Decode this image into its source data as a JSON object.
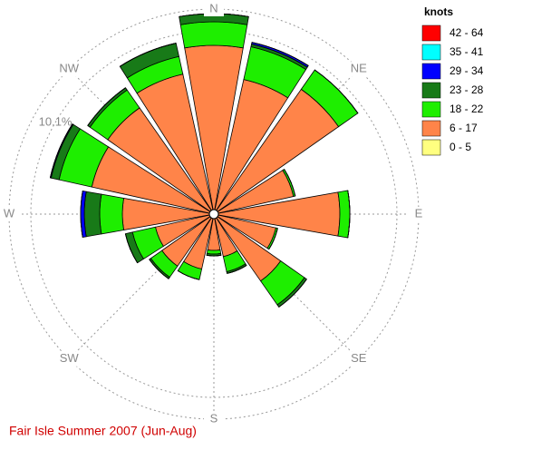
{
  "chart_data": {
    "type": "wind_rose",
    "title": "Fair Isle Summer 2007 (Jun-Aug)",
    "legend_title": "knots",
    "categories": [
      "N",
      null,
      "NE",
      null,
      "E",
      null,
      "SE",
      null,
      "S",
      null,
      "SW",
      null,
      "W",
      null,
      "NW",
      null
    ],
    "rlim": [
      0,
      11.3
    ],
    "rticks": [
      {
        "value": 10.1,
        "label": "10.1%"
      }
    ],
    "series": [
      {
        "name": "0 - 5",
        "color": "#ffff80",
        "values": [
          0,
          0,
          0,
          0,
          0,
          0,
          0,
          0,
          0,
          0,
          0,
          0,
          0,
          0,
          0,
          0
        ]
      },
      {
        "name": "6 - 17",
        "color": "#ff8449",
        "values": [
          9.3,
          7.6,
          8.4,
          4.5,
          6.95,
          3.5,
          4.5,
          2.4,
          2.0,
          3.1,
          3.5,
          3.3,
          5.05,
          6.9,
          7.15,
          7.9
        ]
      },
      {
        "name": "18 - 22",
        "color": "#1eee00",
        "values": [
          1.3,
          1.85,
          1.3,
          0.1,
          0.55,
          0.1,
          1.6,
          0.85,
          0.2,
          0.6,
          0.75,
          1.3,
          1.25,
          1.85,
          1.2,
          1.0
        ]
      },
      {
        "name": "23 - 28",
        "color": "#187a18",
        "values": [
          0.45,
          0.15,
          0,
          0,
          0,
          0,
          0.15,
          0.1,
          0.1,
          0,
          0.1,
          0.4,
          0.85,
          0.45,
          0.15,
          0.75
        ]
      },
      {
        "name": "29 - 34",
        "color": "#0000ff",
        "values": [
          0,
          0.1,
          0,
          0,
          0,
          0,
          0,
          0,
          0,
          0,
          0,
          0,
          0.2,
          0.05,
          0,
          0
        ]
      },
      {
        "name": "35 - 41",
        "color": "#00ffff",
        "values": [
          0,
          0,
          0,
          0,
          0,
          0,
          0,
          0,
          0,
          0,
          0,
          0,
          0,
          0,
          0,
          0
        ]
      },
      {
        "name": "42 - 64",
        "color": "#ff0000",
        "values": [
          0,
          0,
          0,
          0,
          0,
          0,
          0,
          0,
          0,
          0,
          0,
          0,
          0,
          0,
          0,
          0
        ]
      }
    ]
  }
}
